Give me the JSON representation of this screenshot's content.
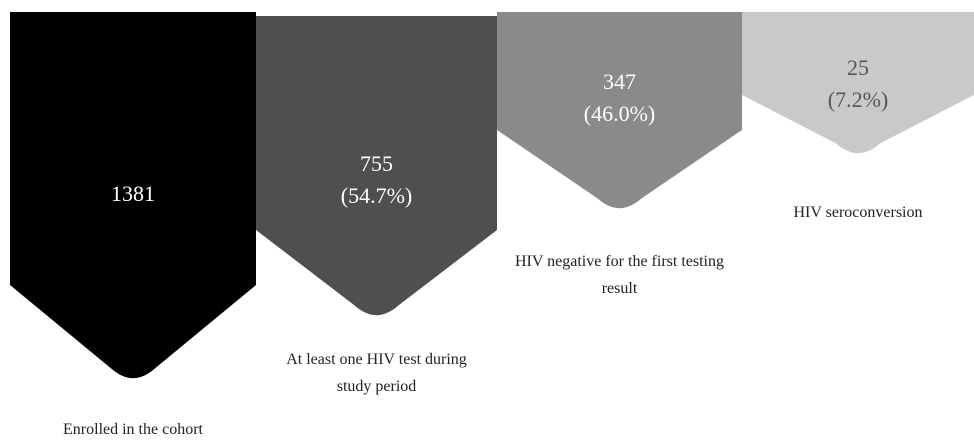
{
  "nodes": [
    {
      "value": "1381",
      "caption": "Enrolled in the cohort"
    },
    {
      "value": "755",
      "percent": "(54.7%)",
      "caption": "At least one HIV test during study period"
    },
    {
      "value": "347",
      "percent": "(46.0%)",
      "caption": "HIV negative for the first testing result"
    },
    {
      "value": "25",
      "percent": "(7.2%)",
      "caption": "HIV seroconversion"
    }
  ]
}
